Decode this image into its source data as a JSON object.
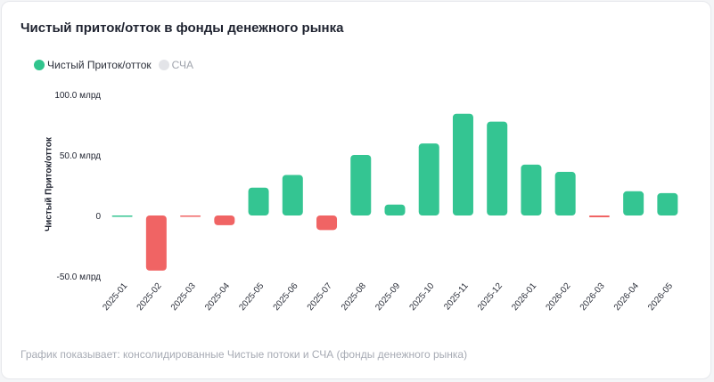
{
  "title": "Чистый приток/отток в фонды денежного рынка",
  "legend": {
    "items": [
      {
        "label": "Чистый Приток/отток",
        "color": "#31c48d",
        "active": true
      },
      {
        "label": "СЧА",
        "color": "#e3e4e8",
        "active": false
      }
    ]
  },
  "footer": "График показывает: консолидированные Чистые потоки и СЧА (фонды денежного рынка)",
  "chart_data": {
    "type": "bar",
    "title": "Чистый приток/отток в фонды денежного рынка",
    "ylabel": "Чистый Приток/отток",
    "xlabel": "",
    "categories": [
      "2025-01",
      "2025-02",
      "2025-03",
      "2025-04",
      "2025-05",
      "2025-06",
      "2025-07",
      "2025-08",
      "2025-09",
      "2025-10",
      "2025-11",
      "2025-12",
      "2026-01",
      "2026-02",
      "2026-03",
      "2026-04",
      "2026-05"
    ],
    "series": [
      {
        "name": "Чистый Приток/отток",
        "values": [
          0,
          -45.5,
          -0.5,
          -8,
          23,
          33.5,
          -12,
          50,
          9,
          59.5,
          84,
          77.5,
          42,
          36,
          -1.5,
          20,
          18.5
        ]
      }
    ],
    "yticks": [
      {
        "value": 100,
        "label": "100.0 млрд"
      },
      {
        "value": 50,
        "label": "50.0 млрд"
      },
      {
        "value": 0,
        "label": "0"
      },
      {
        "value": -50,
        "label": "-50.0 млрд"
      }
    ],
    "ylim": [
      -50,
      100
    ],
    "grid": false,
    "legend_position": "top-left",
    "colors": {
      "positive": "#34c592",
      "negative": "#f06464"
    }
  }
}
